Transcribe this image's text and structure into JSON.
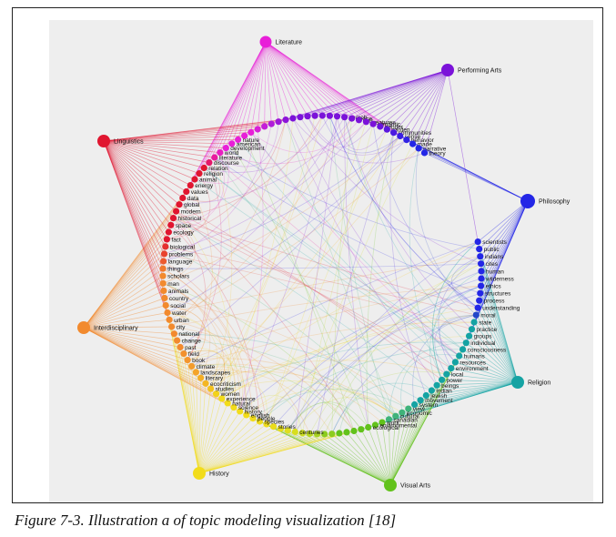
{
  "caption": "Figure 7-3. Illustration a of topic modeling visualization [18]",
  "diagram": {
    "background": "#eeeeee",
    "hubs": [
      {
        "label": "Literature",
        "color": "#e81fd8"
      },
      {
        "label": "Performing Arts",
        "color": "#7b12d9"
      },
      {
        "label": "Philosophy",
        "color": "#2326e6"
      },
      {
        "label": "Religion",
        "color": "#15a3a3"
      },
      {
        "label": "Visual Arts",
        "color": "#62c21b"
      },
      {
        "label": "History",
        "color": "#f2dc1a"
      },
      {
        "label": "Interdisciplinary",
        "color": "#f28a2e"
      },
      {
        "label": "Linguistics",
        "color": "#e01630"
      }
    ],
    "ring_terms": [
      {
        "label": "scientists",
        "color": "#2326e6"
      },
      {
        "label": "public",
        "color": "#2326e6"
      },
      {
        "label": "indians",
        "color": "#2326e6"
      },
      {
        "label": "cites",
        "color": "#2326e6"
      },
      {
        "label": "human",
        "color": "#2326e6"
      },
      {
        "label": "wilderness",
        "color": "#2326e6"
      },
      {
        "label": "ethics",
        "color": "#2326e6"
      },
      {
        "label": "structures",
        "color": "#2326e6"
      },
      {
        "label": "process",
        "color": "#2326e6"
      },
      {
        "label": "understanding",
        "color": "#2326e6"
      },
      {
        "label": "moral",
        "color": "#2346c8"
      },
      {
        "label": "state",
        "color": "#15a3a3"
      },
      {
        "label": "practice",
        "color": "#15a3a3"
      },
      {
        "label": "groups",
        "color": "#15a3a3"
      },
      {
        "label": "individual",
        "color": "#15a3a3"
      },
      {
        "label": "consciousness",
        "color": "#15a3a3"
      },
      {
        "label": "humans",
        "color": "#15a3a3"
      },
      {
        "label": "resources",
        "color": "#15a3a3"
      },
      {
        "label": "environment",
        "color": "#15a3a3"
      },
      {
        "label": "local",
        "color": "#15a3a3"
      },
      {
        "label": "power",
        "color": "#15a3a3"
      },
      {
        "label": "beings",
        "color": "#15a3a3"
      },
      {
        "label": "indian",
        "color": "#15a3a3"
      },
      {
        "label": "jewish",
        "color": "#15a3a3"
      },
      {
        "label": "movement",
        "color": "#15a3a3"
      },
      {
        "label": "system",
        "color": "#15a3a3"
      },
      {
        "label": "view",
        "color": "#3fb37a"
      },
      {
        "label": "economic",
        "color": "#3fb37a"
      },
      {
        "label": "cultural",
        "color": "#3fb37a"
      },
      {
        "label": "canadian",
        "color": "#3fb37a"
      },
      {
        "label": "work",
        "color": "#62c21b"
      },
      {
        "label": "environmental",
        "color": "#62c21b"
      },
      {
        "label": "ecological",
        "color": "#62c21b"
      },
      {
        "label": "",
        "color": "#62c21b"
      },
      {
        "label": "",
        "color": "#62c21b"
      },
      {
        "label": "",
        "color": "#62c21b"
      },
      {
        "label": "",
        "color": "#62c21b"
      },
      {
        "label": "",
        "color": "#8ccc1e"
      },
      {
        "label": "",
        "color": "#8ccc1e"
      },
      {
        "label": "",
        "color": "#a8d21f"
      },
      {
        "label": "",
        "color": "#b8d820"
      },
      {
        "label": "",
        "color": "#c8dc20"
      },
      {
        "label": "centuries",
        "color": "#d8de1e"
      },
      {
        "label": "",
        "color": "#e0de1e"
      },
      {
        "label": "",
        "color": "#e6dc1c"
      },
      {
        "label": "stories",
        "color": "#eadc1c"
      },
      {
        "label": "",
        "color": "#eedc1c"
      },
      {
        "label": "species",
        "color": "#f0dc1c"
      },
      {
        "label": "people",
        "color": "#f2dc1a"
      },
      {
        "label": "english",
        "color": "#f2dc1a"
      },
      {
        "label": "history",
        "color": "#f2dc1a"
      },
      {
        "label": "science",
        "color": "#f2dc1a"
      },
      {
        "label": "natural",
        "color": "#f2dc1a"
      },
      {
        "label": "experience",
        "color": "#f2dc1a"
      },
      {
        "label": "women",
        "color": "#f2d21a"
      },
      {
        "label": "studies",
        "color": "#f4c21e"
      },
      {
        "label": "ecocriticism",
        "color": "#f4b622"
      },
      {
        "label": "literary",
        "color": "#f4ae26"
      },
      {
        "label": "landscapes",
        "color": "#f4a42a"
      },
      {
        "label": "climate",
        "color": "#f49c2c"
      },
      {
        "label": "book",
        "color": "#f4962e"
      },
      {
        "label": "field",
        "color": "#f2902e"
      },
      {
        "label": "past",
        "color": "#f28a2e"
      },
      {
        "label": "change",
        "color": "#f28a2e"
      },
      {
        "label": "national",
        "color": "#f28a2e"
      },
      {
        "label": "city",
        "color": "#f28a2e"
      },
      {
        "label": "urban",
        "color": "#f28a2e"
      },
      {
        "label": "water",
        "color": "#f28a2e"
      },
      {
        "label": "social",
        "color": "#f28a2e"
      },
      {
        "label": "country",
        "color": "#f28a2e"
      },
      {
        "label": "animals",
        "color": "#f28a2e"
      },
      {
        "label": "man",
        "color": "#f28a2e"
      },
      {
        "label": "scholars",
        "color": "#f28a2e"
      },
      {
        "label": "things",
        "color": "#f07a2e"
      },
      {
        "label": "language",
        "color": "#ec5a2e"
      },
      {
        "label": "problems",
        "color": "#e8422e"
      },
      {
        "label": "biological",
        "color": "#e43030"
      },
      {
        "label": "fact",
        "color": "#e01630"
      },
      {
        "label": "ecology",
        "color": "#e01630"
      },
      {
        "label": "space",
        "color": "#e01630"
      },
      {
        "label": "historical",
        "color": "#e01630"
      },
      {
        "label": "modern",
        "color": "#e01630"
      },
      {
        "label": "global",
        "color": "#e01630"
      },
      {
        "label": "data",
        "color": "#e01630"
      },
      {
        "label": "values",
        "color": "#e01630"
      },
      {
        "label": "energy",
        "color": "#e01630"
      },
      {
        "label": "animal",
        "color": "#e01630"
      },
      {
        "label": "religion",
        "color": "#e01630"
      },
      {
        "label": "relation",
        "color": "#e01630"
      },
      {
        "label": "discourse",
        "color": "#e4186a"
      },
      {
        "label": "literature",
        "color": "#e81c9e"
      },
      {
        "label": "world",
        "color": "#e81fc0"
      },
      {
        "label": "development",
        "color": "#e81fd8"
      },
      {
        "label": "american",
        "color": "#e81fd8"
      },
      {
        "label": "nature",
        "color": "#e81fd8"
      },
      {
        "label": "",
        "color": "#e81fd8"
      },
      {
        "label": "",
        "color": "#e81fd8"
      },
      {
        "label": "",
        "color": "#d81fd8"
      },
      {
        "label": "",
        "color": "#c41fd8"
      },
      {
        "label": "",
        "color": "#b01cd8"
      },
      {
        "label": "",
        "color": "#9c18d8"
      },
      {
        "label": "",
        "color": "#8c14d9"
      },
      {
        "label": "",
        "color": "#7b12d9"
      },
      {
        "label": "",
        "color": "#7b12d9"
      },
      {
        "label": "",
        "color": "#7b12d9"
      },
      {
        "label": "",
        "color": "#7b12d9"
      },
      {
        "label": "",
        "color": "#7b12d9"
      },
      {
        "label": "",
        "color": "#7b12d9"
      },
      {
        "label": "",
        "color": "#7b12d9"
      },
      {
        "label": "search",
        "color": "#7b12d9"
      },
      {
        "label": "space",
        "color": "#7b12d9"
      },
      {
        "label": "arts",
        "color": "#7b12d9"
      },
      {
        "label": "creatures",
        "color": "#7b12d9"
      },
      {
        "label": "romantic",
        "color": "#7b12d9"
      },
      {
        "label": "gender",
        "color": "#6a14dc"
      },
      {
        "label": "garden",
        "color": "#5a16de"
      },
      {
        "label": "communities",
        "color": "#4a1ae0"
      },
      {
        "label": "sense",
        "color": "#3a1ee2"
      },
      {
        "label": "behavior",
        "color": "#3022e4"
      },
      {
        "label": "made",
        "color": "#2326e6"
      },
      {
        "label": "narrative",
        "color": "#2326e6"
      },
      {
        "label": "theory",
        "color": "#2326e6"
      }
    ]
  }
}
